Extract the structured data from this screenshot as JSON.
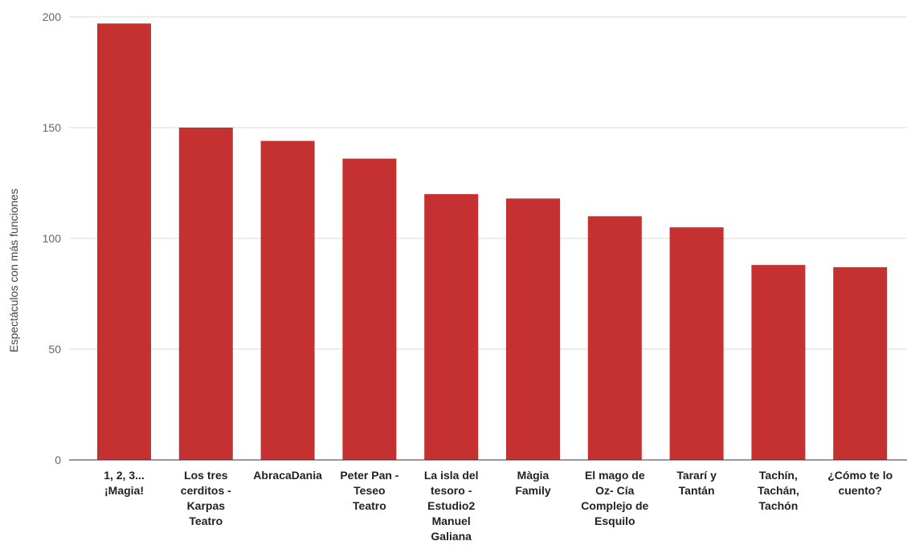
{
  "chart_data": {
    "type": "bar",
    "title": "",
    "xlabel": "",
    "ylabel": "Espectáculos con más funciones",
    "ylim": [
      0,
      200
    ],
    "yticks": [
      0,
      50,
      100,
      150,
      200
    ],
    "grid": true,
    "legend": "none",
    "bar_color": "#c53030",
    "categories": [
      "1, 2, 3... ¡Magia!",
      "Los tres cerditos - Karpas Teatro",
      "AbracaDania",
      "Peter Pan - Teseo Teatro",
      "La isla del tesoro - Estudio2 Manuel Galiana",
      "Màgia Family",
      "El mago de Oz- Cía Complejo de Esquilo",
      "Tararí y Tantán",
      "Tachín, Tachán, Tachón",
      "¿Cómo te lo cuento?"
    ],
    "category_label_lines": [
      [
        "1, 2, 3...",
        "¡Magia!"
      ],
      [
        "Los tres",
        "cerditos -",
        "Karpas",
        "Teatro"
      ],
      [
        "AbracaDania"
      ],
      [
        "Peter Pan -",
        "Teseo",
        "Teatro"
      ],
      [
        "La isla del",
        "tesoro -",
        "Estudio2",
        "Manuel",
        "Galiana"
      ],
      [
        "Màgia",
        "Family"
      ],
      [
        "El mago de",
        "Oz- Cía",
        "Complejo de",
        "Esquilo"
      ],
      [
        "Tararí y",
        "Tantán"
      ],
      [
        "Tachín,",
        "Tachán,",
        "Tachón"
      ],
      [
        "¿Cómo te lo",
        "cuento?"
      ]
    ],
    "values": [
      197,
      150,
      144,
      136,
      120,
      118,
      110,
      105,
      88,
      87
    ]
  }
}
